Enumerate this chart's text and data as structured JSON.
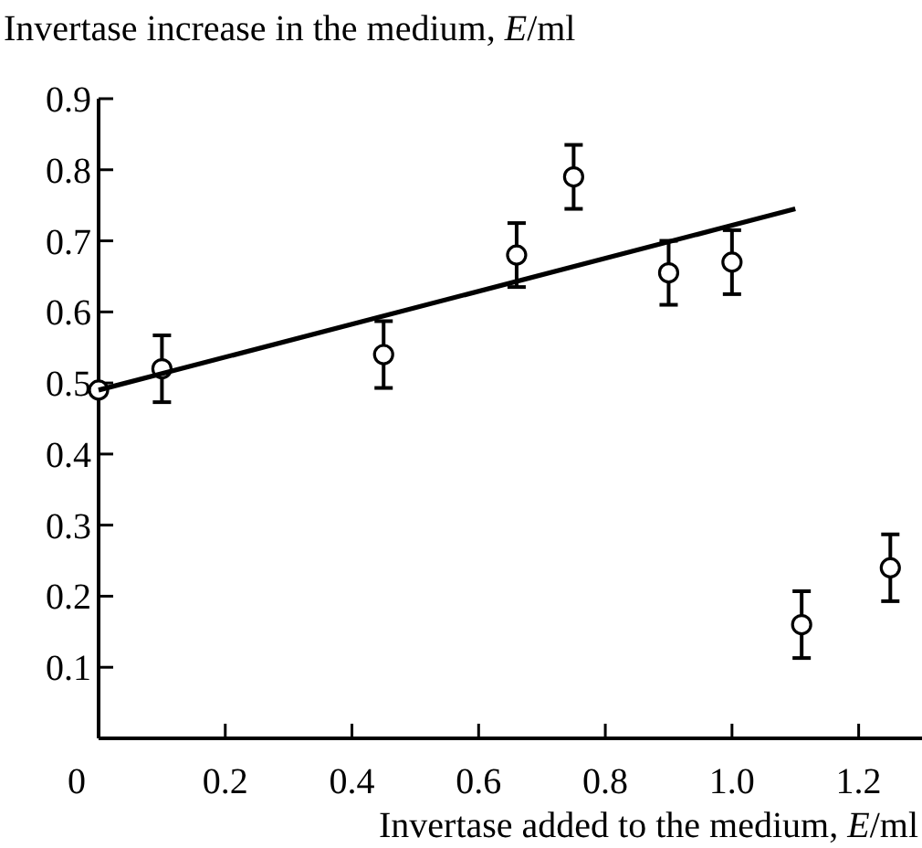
{
  "chart_data": {
    "type": "scatter",
    "ylabel": "Invertase increase in the medium, E/ml",
    "xlabel": "Invertase added to the medium, E/ml",
    "xlim": [
      0,
      1.3
    ],
    "xticks": [
      0,
      0.2,
      0.4,
      0.6,
      0.8,
      {
        "value": 1,
        "label": "1.0"
      },
      1.2
    ],
    "ylim": [
      0,
      0.9
    ],
    "yticks": [
      0.1,
      0.2,
      0.3,
      0.4,
      0.5,
      0.6,
      0.7,
      0.8,
      0.9
    ],
    "series": [
      {
        "color": "#000000",
        "marker": "circle",
        "x": [
          0,
          0.1,
          0.45,
          0.66,
          0.75,
          0.9,
          1.0,
          1.11,
          1.25
        ],
        "values": [
          0.49,
          0.52,
          0.54,
          0.68,
          0.79,
          0.655,
          0.67,
          0.16,
          0.24
        ],
        "errors": [
          null,
          0.047,
          0.047,
          0.045,
          0.045,
          0.045,
          0.045,
          0.047,
          0.047
        ]
      },
      {
        "type": "line",
        "color": "#000000",
        "line_style": "solid",
        "x": [
          0,
          1.1
        ],
        "values": [
          0.49,
          0.745
        ]
      }
    ]
  }
}
